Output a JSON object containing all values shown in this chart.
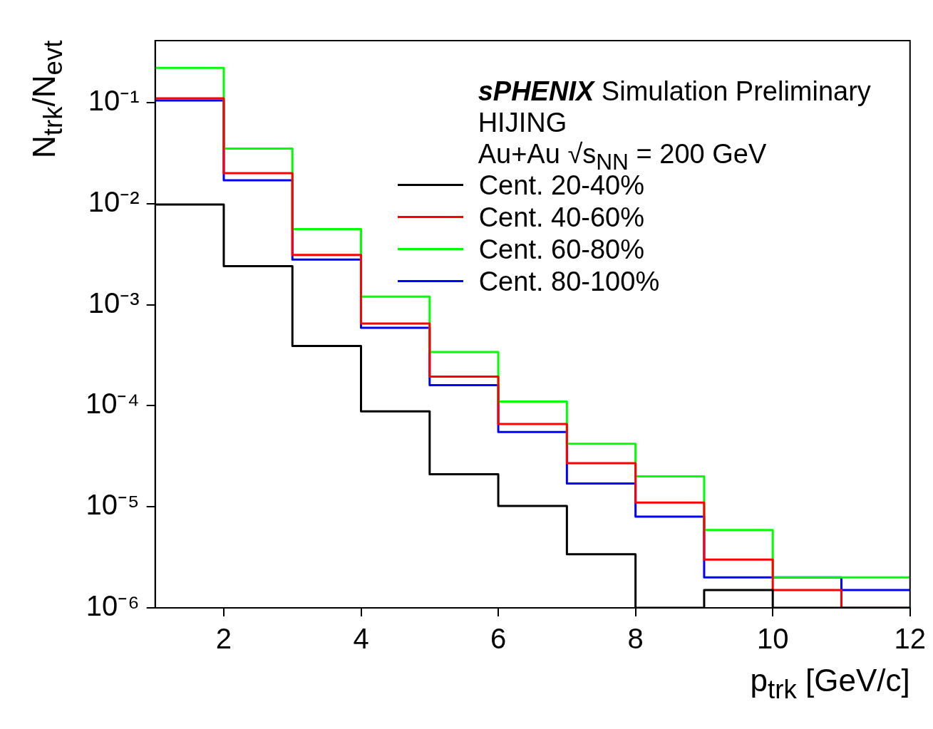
{
  "chart_data": {
    "type": "histogram",
    "xlabel": "p$_{trk}$ [GeV/c]",
    "ylabel": "N$_{trk}$/N$_{evt}$",
    "annotations": [
      "sPHENIX Simulation Preliminary",
      "HIJING",
      "Au+Au √s$_{NN}$ = 200 GeV"
    ],
    "bins": [
      1,
      2,
      3,
      4,
      5,
      6,
      7,
      8,
      9,
      10,
      11,
      12
    ],
    "series": [
      {
        "name": "Cent. 20-40%",
        "color": "#000000",
        "values": [
          0.0098,
          0.0024,
          0.00039,
          8.8e-05,
          2.1e-05,
          1.02e-05,
          3.4e-06,
          1e-06,
          1.5e-06,
          1e-06,
          1e-06
        ]
      },
      {
        "name": "Cent. 40-60%",
        "color": "#ff0000",
        "values": [
          0.11,
          0.02,
          0.0031,
          0.00065,
          0.000194,
          6.6e-05,
          2.7e-05,
          1.1e-05,
          3e-06,
          1.5e-06,
          1e-06
        ]
      },
      {
        "name": "Cent. 60-80%",
        "color": "#00ff00",
        "values": [
          0.22,
          0.035,
          0.0056,
          0.0012,
          0.00034,
          0.00011,
          4.2e-05,
          2e-05,
          5.9e-06,
          2e-06,
          2e-06
        ]
      },
      {
        "name": "Cent. 80-100%",
        "color": "#0000ff",
        "values": [
          0.105,
          0.017,
          0.0028,
          0.00059,
          0.00016,
          5.5e-05,
          1.7e-05,
          8e-06,
          2e-06,
          2e-06,
          1.5e-06
        ]
      }
    ],
    "xlim": [
      1,
      12
    ],
    "ylim": [
      1e-06,
      0.41
    ],
    "xticks": [
      2,
      4,
      6,
      8,
      10,
      12
    ],
    "yticks": [
      {
        "value": 1e-06,
        "label": "10⁻⁶"
      },
      {
        "value": 1e-05,
        "label": "10⁻⁵"
      },
      {
        "value": 0.0001,
        "label": "10⁻⁴"
      },
      {
        "value": 0.001,
        "label": "10⁻³"
      },
      {
        "value": 0.01,
        "label": "10⁻²"
      },
      {
        "value": 0.1,
        "label": "10⁻¹"
      }
    ],
    "log": "y",
    "legend": "top right"
  }
}
